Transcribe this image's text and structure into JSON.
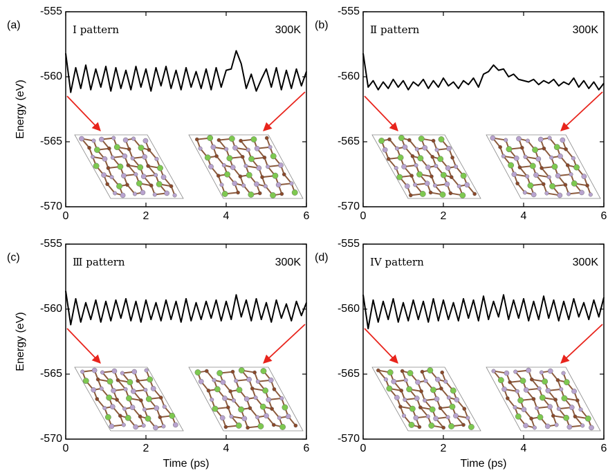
{
  "chart_data": [
    {
      "type": "line",
      "panel_label": "(a)",
      "annotation": "Ⅰ pattern",
      "temperature": "300K",
      "ylabel": "Energy (eV)",
      "x": [
        0,
        0.125,
        0.25,
        0.375,
        0.5,
        0.625,
        0.75,
        0.875,
        1,
        1.125,
        1.25,
        1.375,
        1.5,
        1.625,
        1.75,
        1.875,
        2,
        2.125,
        2.25,
        2.375,
        2.5,
        2.625,
        2.75,
        2.875,
        3,
        3.125,
        3.25,
        3.375,
        3.5,
        3.625,
        3.75,
        3.875,
        4,
        4.125,
        4.25,
        4.375,
        4.5,
        4.625,
        4.75,
        4.875,
        5,
        5.125,
        5.25,
        5.375,
        5.5,
        5.625,
        5.75,
        5.875,
        6
      ],
      "values": [
        -558.2,
        -561.2,
        -559.3,
        -560.9,
        -559.1,
        -561.0,
        -559.4,
        -560.8,
        -559.2,
        -561.1,
        -559.3,
        -560.9,
        -559.5,
        -561.0,
        -559.2,
        -560.8,
        -559.4,
        -561.1,
        -559.3,
        -560.7,
        -559.2,
        -560.9,
        -559.5,
        -561.0,
        -559.3,
        -560.8,
        -559.6,
        -560.9,
        -559.4,
        -561.0,
        -559.3,
        -560.8,
        -559.5,
        -559.4,
        -558.0,
        -559.0,
        -560.9,
        -559.8,
        -561.1,
        -560.2,
        -559.4,
        -560.8,
        -559.3,
        -561.0,
        -559.5,
        -560.9,
        -559.4,
        -560.7,
        -559.6
      ],
      "color": "#000000",
      "xlim": [
        0,
        6
      ],
      "xticks": [
        0,
        2,
        4,
        6
      ],
      "ylim": [
        -570,
        -555
      ],
      "yticks": [
        -555,
        -560,
        -565,
        -570
      ]
    },
    {
      "type": "line",
      "panel_label": "(b)",
      "annotation": "Ⅱ pattern",
      "temperature": "300K",
      "x": [
        0,
        0.125,
        0.25,
        0.375,
        0.5,
        0.625,
        0.75,
        0.875,
        1,
        1.125,
        1.25,
        1.375,
        1.5,
        1.625,
        1.75,
        1.875,
        2,
        2.125,
        2.25,
        2.375,
        2.5,
        2.625,
        2.75,
        2.875,
        3,
        3.125,
        3.25,
        3.375,
        3.5,
        3.625,
        3.75,
        3.875,
        4,
        4.125,
        4.25,
        4.375,
        4.5,
        4.625,
        4.75,
        4.875,
        5,
        5.125,
        5.25,
        5.375,
        5.5,
        5.625,
        5.75,
        5.875,
        6
      ],
      "values": [
        -558.2,
        -560.8,
        -560.3,
        -561.0,
        -560.4,
        -560.9,
        -560.2,
        -560.8,
        -560.3,
        -561.0,
        -560.4,
        -560.7,
        -560.2,
        -560.9,
        -560.3,
        -560.8,
        -560.1,
        -560.7,
        -560.4,
        -560.9,
        -560.3,
        -560.6,
        -560.1,
        -560.8,
        -559.8,
        -559.6,
        -559.1,
        -559.5,
        -559.4,
        -560.0,
        -559.8,
        -560.2,
        -560.3,
        -560.4,
        -560.2,
        -560.6,
        -560.3,
        -560.5,
        -560.2,
        -560.7,
        -560.4,
        -560.6,
        -560.1,
        -560.8,
        -560.3,
        -560.9,
        -560.4,
        -561.0,
        -560.5
      ],
      "color": "#000000",
      "xlim": [
        0,
        6
      ],
      "xticks": [
        0,
        2,
        4,
        6
      ],
      "ylim": [
        -570,
        -555
      ],
      "yticks": [
        -555,
        -560,
        -565,
        -570
      ]
    },
    {
      "type": "line",
      "panel_label": "(c)",
      "annotation": "Ⅲ pattern",
      "temperature": "300K",
      "ylabel": "Energy (eV)",
      "xlabel": "Time (ps)",
      "x": [
        0,
        0.125,
        0.25,
        0.375,
        0.5,
        0.625,
        0.75,
        0.875,
        1,
        1.125,
        1.25,
        1.375,
        1.5,
        1.625,
        1.75,
        1.875,
        2,
        2.125,
        2.25,
        2.375,
        2.5,
        2.625,
        2.75,
        2.875,
        3,
        3.125,
        3.25,
        3.375,
        3.5,
        3.625,
        3.75,
        3.875,
        4,
        4.125,
        4.25,
        4.375,
        4.5,
        4.625,
        4.75,
        4.875,
        5,
        5.125,
        5.25,
        5.375,
        5.5,
        5.625,
        5.75,
        5.875,
        6
      ],
      "values": [
        -558.6,
        -561.2,
        -559.2,
        -561.0,
        -559.5,
        -560.8,
        -559.3,
        -561.0,
        -559.4,
        -560.9,
        -559.3,
        -560.7,
        -559.2,
        -560.9,
        -559.4,
        -561.0,
        -559.3,
        -560.8,
        -559.5,
        -560.9,
        -559.3,
        -560.8,
        -559.4,
        -561.0,
        -559.2,
        -560.9,
        -559.5,
        -560.8,
        -559.4,
        -560.7,
        -559.3,
        -560.9,
        -559.4,
        -560.8,
        -558.9,
        -560.6,
        -559.3,
        -560.9,
        -559.2,
        -560.8,
        -559.5,
        -561.0,
        -559.3,
        -560.7,
        -559.6,
        -560.9,
        -559.4,
        -560.5,
        -559.5
      ],
      "color": "#000000",
      "xlim": [
        0,
        6
      ],
      "xticks": [
        0,
        2,
        4,
        6
      ],
      "ylim": [
        -570,
        -555
      ],
      "yticks": [
        -555,
        -560,
        -565,
        -570
      ]
    },
    {
      "type": "line",
      "panel_label": "(d)",
      "annotation": "IV pattern",
      "temperature": "300K",
      "xlabel": "Time (ps)",
      "x": [
        0,
        0.125,
        0.25,
        0.375,
        0.5,
        0.625,
        0.75,
        0.875,
        1,
        1.125,
        1.25,
        1.375,
        1.5,
        1.625,
        1.75,
        1.875,
        2,
        2.125,
        2.25,
        2.375,
        2.5,
        2.625,
        2.75,
        2.875,
        3,
        3.125,
        3.25,
        3.375,
        3.5,
        3.625,
        3.75,
        3.875,
        4,
        4.125,
        4.25,
        4.375,
        4.5,
        4.625,
        4.75,
        4.875,
        5,
        5.125,
        5.25,
        5.375,
        5.5,
        5.625,
        5.75,
        5.875,
        6
      ],
      "values": [
        -558.9,
        -561.5,
        -559.3,
        -561.0,
        -559.4,
        -560.8,
        -559.2,
        -561.0,
        -559.5,
        -560.9,
        -559.3,
        -560.8,
        -559.4,
        -561.0,
        -559.2,
        -560.9,
        -559.3,
        -560.8,
        -559.5,
        -560.9,
        -559.2,
        -560.7,
        -559.3,
        -560.9,
        -559.0,
        -560.8,
        -559.4,
        -560.6,
        -558.9,
        -560.8,
        -559.3,
        -560.7,
        -559.2,
        -560.9,
        -559.4,
        -560.8,
        -559.0,
        -560.7,
        -559.3,
        -560.9,
        -559.4,
        -560.8,
        -559.2,
        -560.6,
        -559.5,
        -560.8,
        -559.3,
        -560.6,
        -559.1
      ],
      "color": "#000000",
      "xlim": [
        0,
        6
      ],
      "xticks": [
        0,
        2,
        4,
        6
      ],
      "ylim": [
        -570,
        -555
      ],
      "yticks": [
        -555,
        -560,
        -565,
        -570
      ]
    }
  ]
}
